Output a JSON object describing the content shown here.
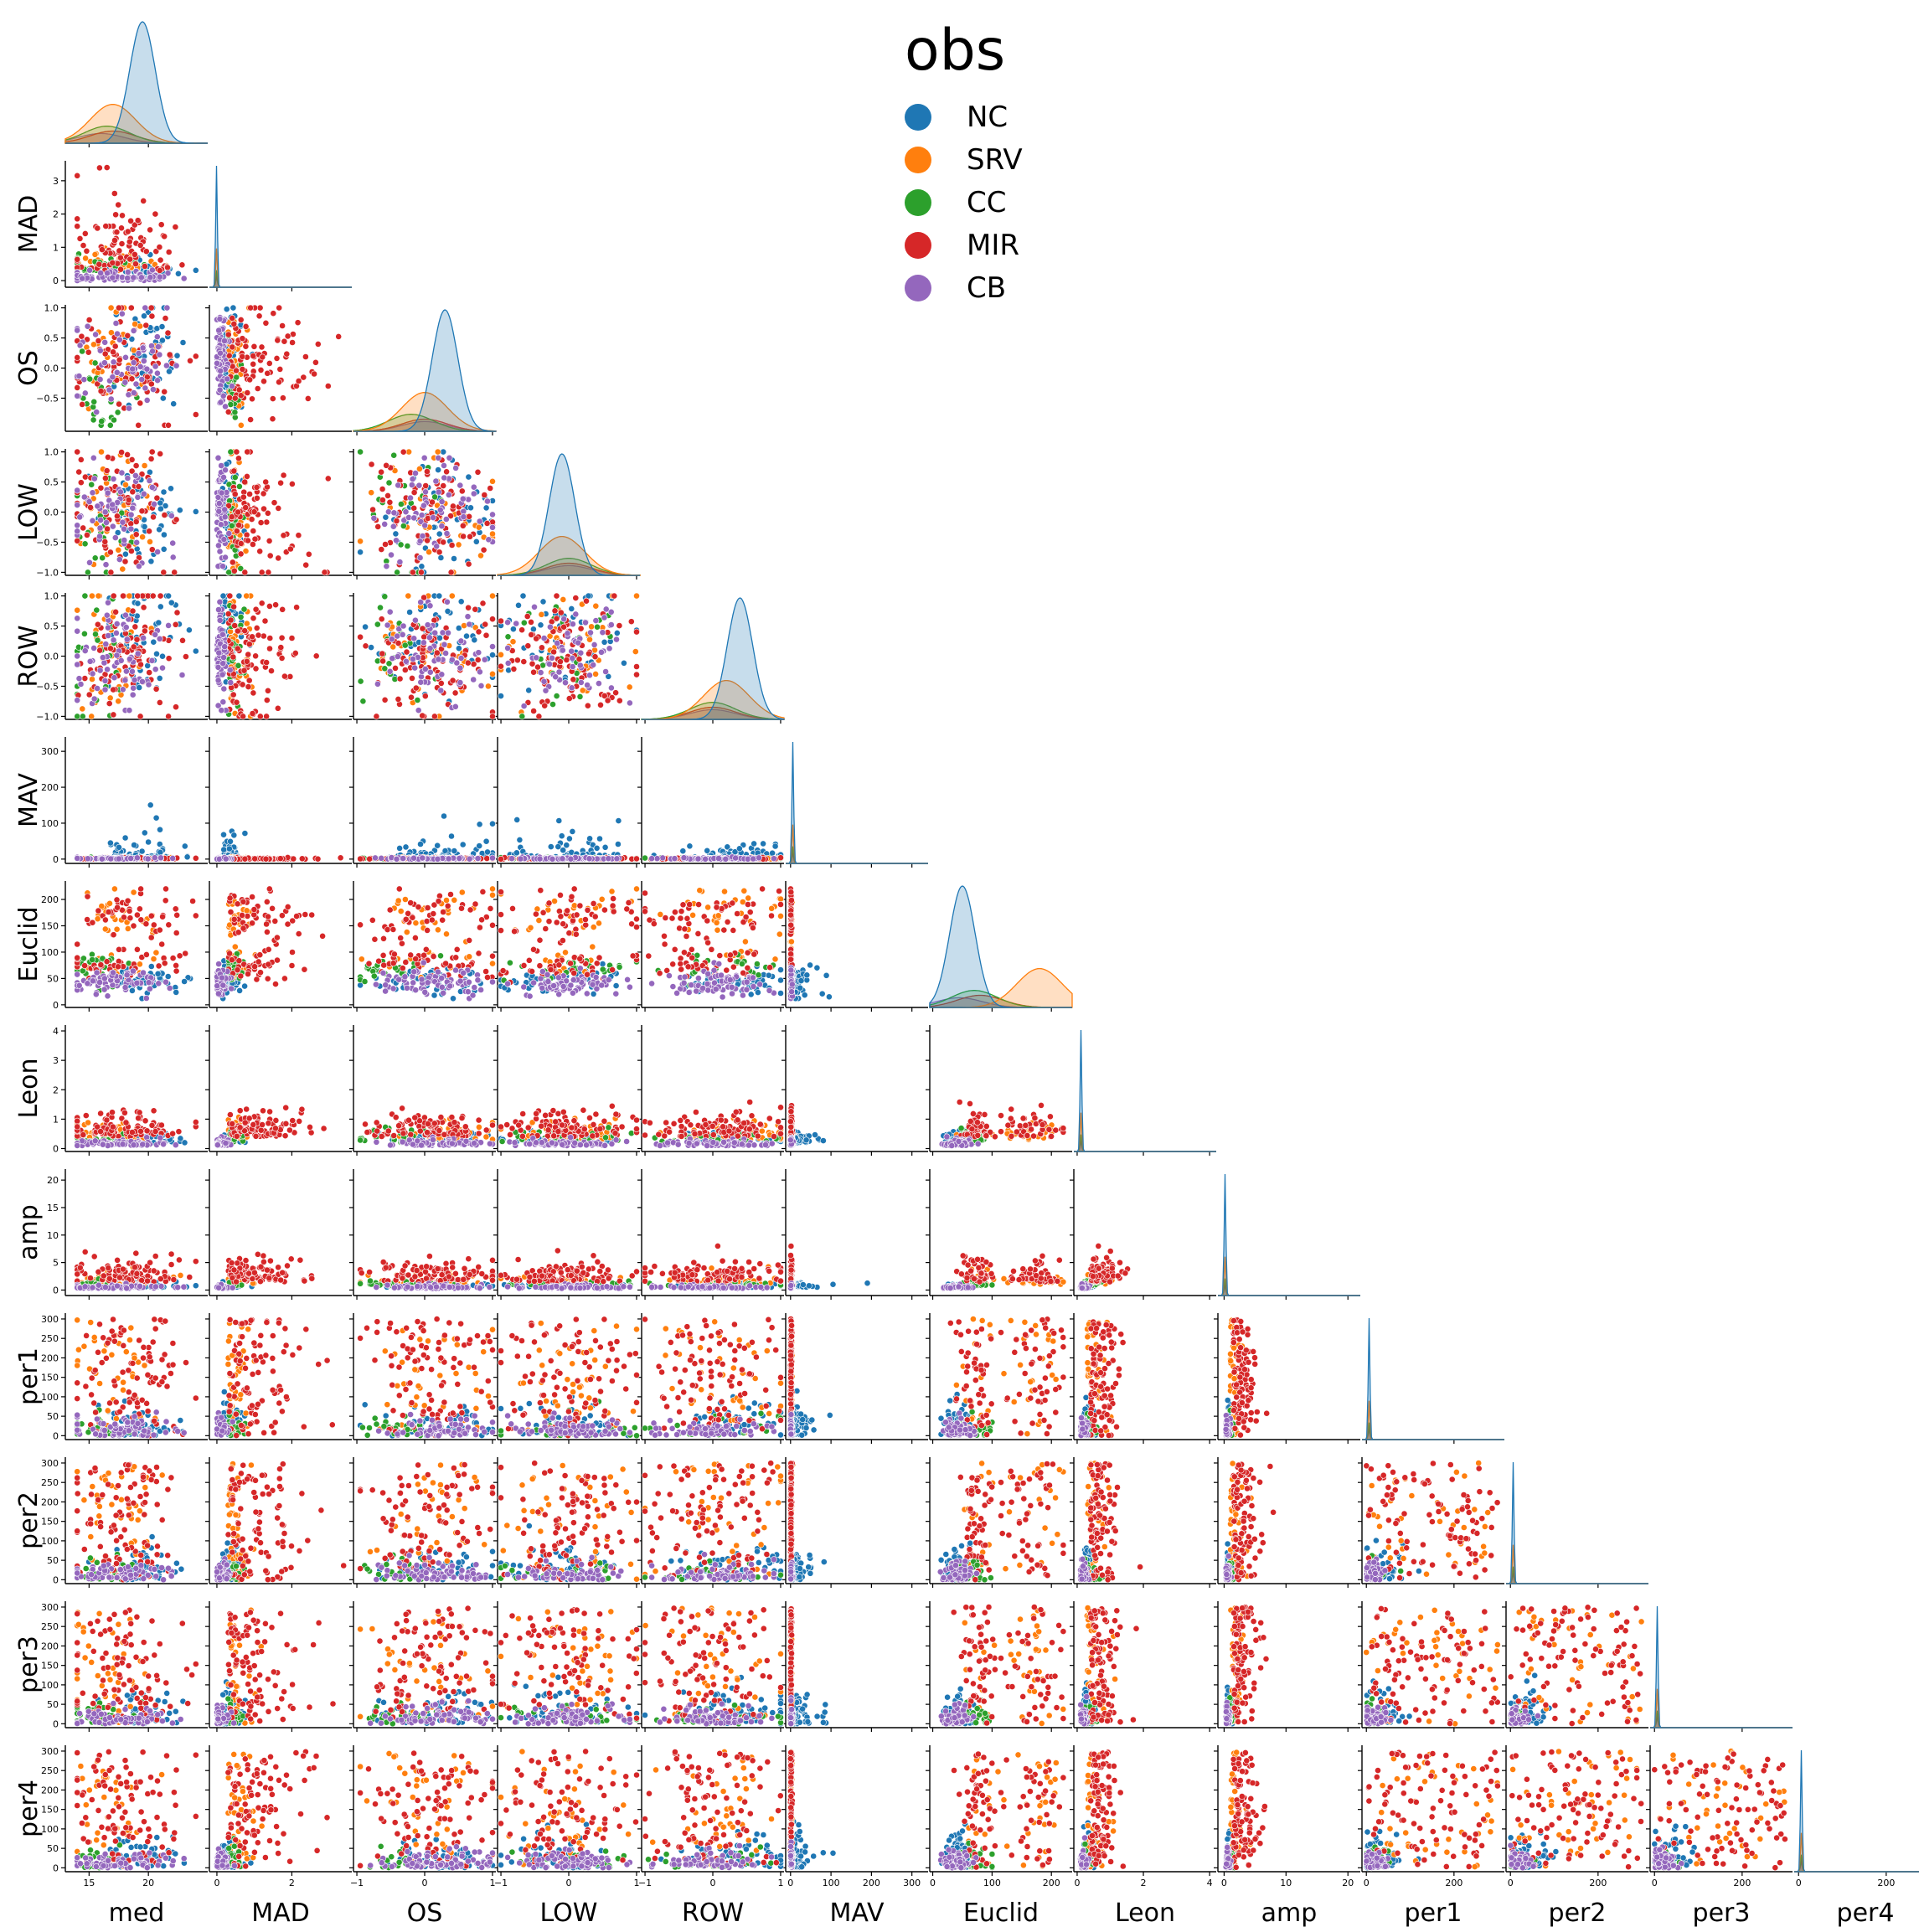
{
  "chart_data": {
    "type": "scatter",
    "layout": "pairplot-lower-corner",
    "variables": [
      "med",
      "MAD",
      "OS",
      "LOW",
      "ROW",
      "MAV",
      "Euclid",
      "Leon",
      "amp",
      "per1",
      "per2",
      "per3",
      "per4"
    ],
    "ranges": {
      "med": [
        13,
        25
      ],
      "MAD": [
        -0.2,
        3.6
      ],
      "OS": [
        -1.05,
        1.05
      ],
      "LOW": [
        -1.05,
        1.05
      ],
      "ROW": [
        -1.05,
        1.05
      ],
      "MAV": [
        -12,
        340
      ],
      "Euclid": [
        -5,
        235
      ],
      "Leon": [
        -0.1,
        4.2
      ],
      "amp": [
        -1,
        22
      ],
      "per1": [
        -10,
        315
      ],
      "per2": [
        -10,
        315
      ],
      "per3": [
        -10,
        315
      ],
      "per4": [
        -10,
        315
      ]
    },
    "ticks": {
      "med": [
        15,
        20
      ],
      "MAD": [
        0,
        2
      ],
      "OS": [
        -1,
        0,
        1
      ],
      "LOW": [
        -1,
        0,
        1
      ],
      "ROW": [
        -1,
        0,
        1
      ],
      "MAV": [
        0,
        100,
        200,
        300
      ],
      "Euclid": [
        0,
        100,
        200
      ],
      "Leon": [
        0,
        2,
        4
      ],
      "amp": [
        0,
        10,
        20
      ],
      "per1": [
        0,
        200
      ],
      "per2": [
        0,
        200
      ],
      "per3": [
        0,
        200
      ],
      "per4": [
        0,
        200
      ]
    },
    "yticks": {
      "MAD": [
        0,
        1,
        2,
        3
      ],
      "OS": [
        -0.5,
        0.0,
        0.5,
        1.0
      ],
      "LOW": [
        -1.0,
        -0.5,
        0.0,
        0.5,
        1.0
      ],
      "ROW": [
        -1.0,
        -0.5,
        0.0,
        0.5,
        1.0
      ],
      "MAV": [
        0,
        100,
        200,
        300
      ],
      "Euclid": [
        0,
        50,
        100,
        150,
        200
      ],
      "Leon": [
        0,
        1,
        2,
        3,
        4
      ],
      "amp": [
        0,
        5,
        10,
        15,
        20
      ],
      "per1": [
        0,
        50,
        100,
        150,
        200,
        250,
        300
      ],
      "per2": [
        0,
        50,
        100,
        150,
        200,
        250,
        300
      ],
      "per3": [
        0,
        50,
        100,
        150,
        200,
        250,
        300
      ],
      "per4": [
        0,
        50,
        100,
        150,
        200,
        250,
        300
      ]
    },
    "ytick_labels": {
      "OS": [
        "−0.5",
        "0.0",
        "0.5",
        "1.0"
      ],
      "LOW": [
        "−1.0",
        "−0.5",
        "0.0",
        "0.5",
        "1.0"
      ],
      "ROW": [
        "−1.0",
        "−0.5",
        "0.0",
        "0.5",
        "1.0"
      ]
    },
    "xtick_labels": {
      "OS": [
        "−1",
        "0",
        "1"
      ],
      "LOW": [
        "−1",
        "0",
        "1"
      ],
      "ROW": [
        "−1",
        "0",
        "1"
      ]
    },
    "legend": {
      "title": "obs",
      "placement": "top-center",
      "entries": [
        {
          "name": "NC",
          "color": "#1f77b4"
        },
        {
          "name": "SRV",
          "color": "#ff7f0e"
        },
        {
          "name": "CC",
          "color": "#2ca02c"
        },
        {
          "name": "MIR",
          "color": "#d62728"
        },
        {
          "name": "CB",
          "color": "#9467bd"
        }
      ]
    },
    "diagonal": "kde",
    "kde_peaks": {
      "med": {
        "NC": [
          19.5
        ],
        "SRV": [
          17
        ],
        "CC": [
          16.5
        ],
        "MIR": [
          17
        ],
        "CB": [
          16
        ]
      },
      "OS": {
        "NC": [
          0.3
        ],
        "SRV": [
          0.0
        ],
        "CC": [
          -0.2
        ],
        "MIR": [
          0.0
        ],
        "CB": [
          0.0
        ]
      },
      "LOW": {
        "NC": [
          -0.1
        ],
        "SRV": [
          -0.1
        ],
        "CC": [
          0.0
        ],
        "MIR": [
          0.0
        ],
        "CB": [
          0.0
        ]
      },
      "ROW": {
        "NC": [
          0.4
        ],
        "SRV": [
          0.2
        ],
        "CC": [
          0.0
        ],
        "MIR": [
          0.0
        ],
        "CB": [
          0.0
        ]
      },
      "Euclid": {
        "NC": [
          50
        ],
        "SRV": [
          180
        ],
        "CC": [
          70
        ],
        "MIR": [
          80
        ],
        "CB": [
          45
        ]
      }
    }
  }
}
